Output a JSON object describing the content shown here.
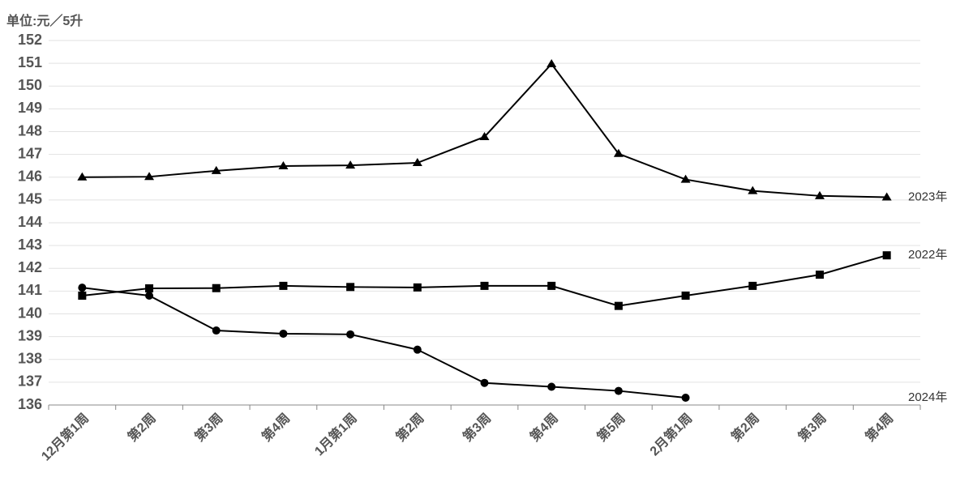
{
  "chart_data": {
    "type": "line",
    "y_label": "单位:元／5升",
    "categories": [
      "12月第1周",
      "第2周",
      "第3周",
      "第4周",
      "1月第1周",
      "第2周",
      "第3周",
      "第4周",
      "第5周",
      "2月第1周",
      "第2周",
      "第3周",
      "第4周"
    ],
    "series": [
      {
        "name": "2023年",
        "color": "#000000",
        "marker": "triangle",
        "values": [
          146.0,
          146.02,
          146.28,
          146.49,
          146.52,
          146.63,
          147.77,
          150.97,
          147.03,
          145.9,
          145.4,
          145.18,
          145.12
        ]
      },
      {
        "name": "2022年",
        "color": "#000000",
        "marker": "square",
        "values": [
          140.8,
          141.12,
          141.13,
          141.23,
          141.18,
          141.16,
          141.23,
          141.23,
          140.35,
          140.8,
          141.23,
          141.72,
          142.57
        ]
      },
      {
        "name": "2024年",
        "color": "#000000",
        "marker": "circle",
        "values": [
          141.15,
          140.8,
          139.27,
          139.13,
          139.1,
          138.43,
          136.97,
          136.8,
          136.62,
          136.32,
          null,
          null,
          null
        ]
      }
    ],
    "ylim": [
      136,
      152
    ],
    "yticks": [
      136,
      137,
      138,
      139,
      140,
      141,
      142,
      143,
      144,
      145,
      146,
      147,
      148,
      149,
      150,
      151,
      152
    ],
    "grid": true
  }
}
